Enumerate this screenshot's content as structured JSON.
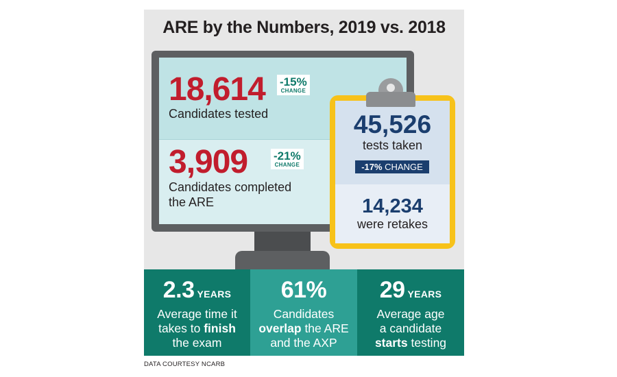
{
  "title": "ARE by the Numbers, 2019 vs. 2018",
  "monitor": {
    "stat1": {
      "value": "18,614",
      "change": "-15%",
      "change_word": "CHANGE",
      "caption": "Candidates tested"
    },
    "stat2": {
      "value": "3,909",
      "change": "-21%",
      "change_word": "CHANGE",
      "caption_line1": "Candidates completed",
      "caption_line2": "the ARE"
    }
  },
  "clipboard": {
    "tests_value": "45,526",
    "tests_caption": "tests taken",
    "change_pct": "-17%",
    "change_word": "CHANGE",
    "retakes_value": "14,234",
    "retakes_caption": "were retakes"
  },
  "bottom": [
    {
      "value": "2.3",
      "unit": "YEARS",
      "line1": "Average time it",
      "line2_pre": "takes to ",
      "line2_bold": "finish",
      "line3": "the exam"
    },
    {
      "value": "61%",
      "line1": "Candidates",
      "line2_bold": "overlap",
      "line2_post": " the ARE",
      "line3": "and the AXP"
    },
    {
      "value": "29",
      "unit": "YEARS",
      "line1": "Average age",
      "line2": "a candidate",
      "line3_bold": "starts",
      "line3_post": " testing"
    }
  ],
  "credit": "DATA COURTESY NCARB",
  "colors": {
    "red": "#c11d2d",
    "teal_dark": "#0f7a6a",
    "teal_light": "#2ea094",
    "navy": "#1b3e6e",
    "yellow": "#f7c21a",
    "monitor_gray": "#5d5f61"
  }
}
